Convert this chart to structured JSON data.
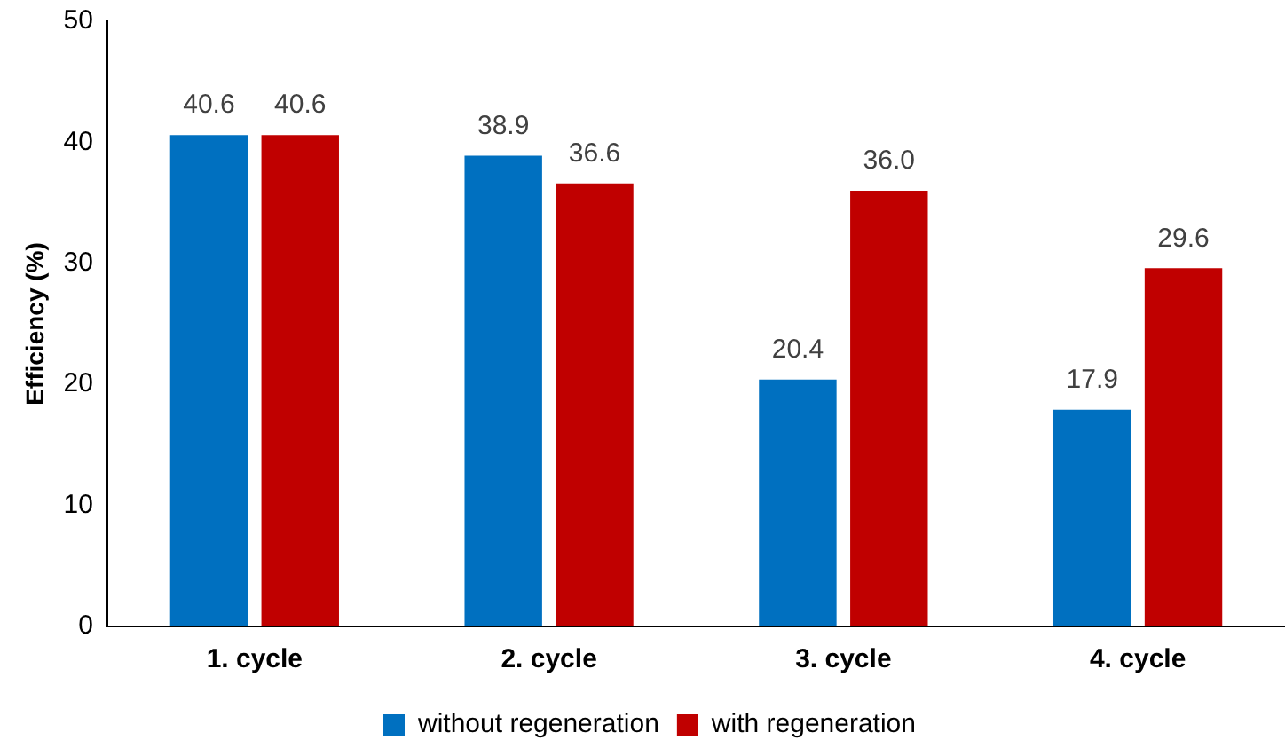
{
  "chart_data": {
    "type": "bar",
    "ylabel": "Efficiency (%)",
    "categories": [
      "1. cycle",
      "2. cycle",
      "3. cycle",
      "4. cycle"
    ],
    "series": [
      {
        "name": "without regeneration",
        "color": "#0070c0",
        "values": [
          40.6,
          38.9,
          20.4,
          17.9
        ],
        "value_labels": [
          "40.6",
          "38.9",
          "20.4",
          "17.9"
        ]
      },
      {
        "name": "with regeneration",
        "color": "#c00000",
        "values": [
          40.6,
          36.6,
          36.0,
          29.6
        ],
        "value_labels": [
          "40.6",
          "36.6",
          "36.0",
          "29.6"
        ]
      }
    ],
    "ylim": [
      0,
      50
    ],
    "yticks": [
      0,
      10,
      20,
      30,
      40,
      50
    ],
    "grid": false,
    "legend": "bottom"
  }
}
